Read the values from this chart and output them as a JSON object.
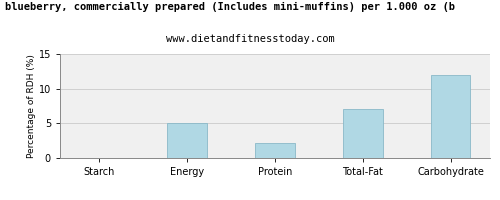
{
  "title": "blueberry, commercially prepared (Includes mini-muffins) per 1.000 oz (b",
  "subtitle": "www.dietandfitnesstoday.com",
  "categories": [
    "Starch",
    "Energy",
    "Protein",
    "Total-Fat",
    "Carbohydrate"
  ],
  "values": [
    0,
    5.0,
    2.2,
    7.1,
    12.0
  ],
  "bar_color": "#b0d8e4",
  "bar_edgecolor": "#8ab8c8",
  "ylabel": "Percentage of RDH (%)",
  "ylim": [
    0,
    15
  ],
  "yticks": [
    0,
    5,
    10,
    15
  ],
  "background_color": "#ffffff",
  "plot_bg_color": "#f0f0f0",
  "title_fontsize": 7.5,
  "subtitle_fontsize": 7.5,
  "ylabel_fontsize": 6.5,
  "tick_fontsize": 7,
  "grid_color": "#d0d0d0",
  "bar_width": 0.45
}
